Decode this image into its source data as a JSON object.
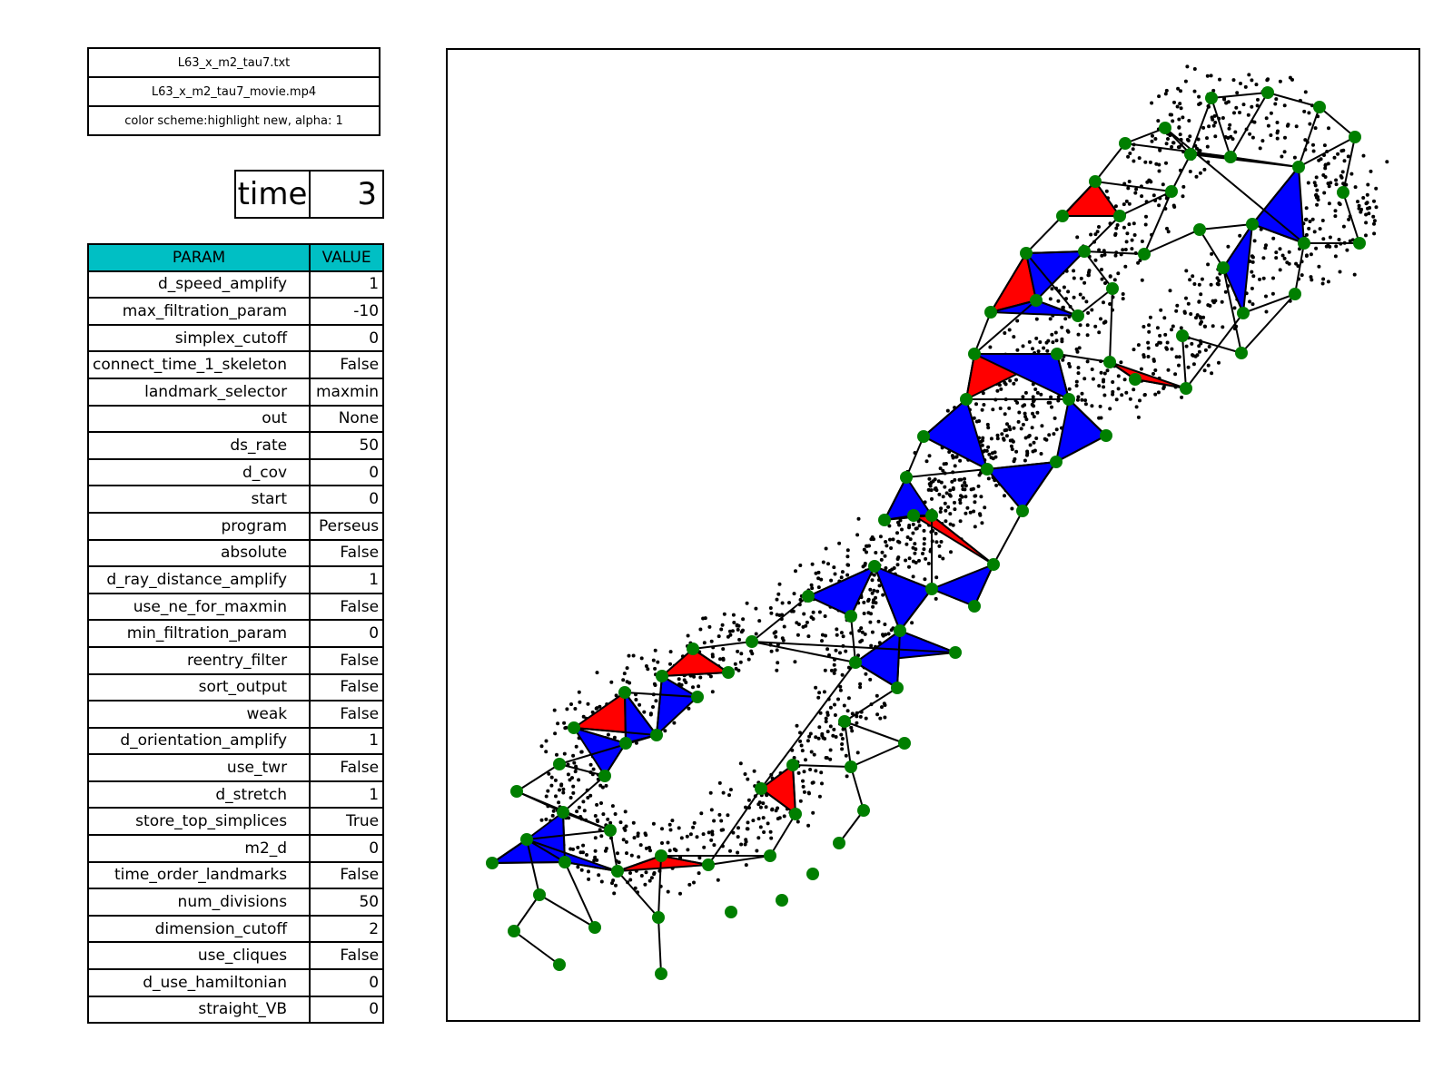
{
  "info": {
    "input_file": "L63_x_m2_tau7.txt",
    "movie_file": "L63_x_m2_tau7_movie.mp4",
    "color_scheme": "color scheme:highlight new, alpha: 1"
  },
  "time": {
    "label": "time",
    "value": "3"
  },
  "params": {
    "header_param": "PARAM",
    "header_value": "VALUE",
    "rows": [
      {
        "name": "d_speed_amplify",
        "value": "1"
      },
      {
        "name": "max_filtration_param",
        "value": "-10"
      },
      {
        "name": "simplex_cutoff",
        "value": "0"
      },
      {
        "name": "connect_time_1_skeleton",
        "value": "False"
      },
      {
        "name": "landmark_selector",
        "value": "maxmin"
      },
      {
        "name": "out",
        "value": "None"
      },
      {
        "name": "ds_rate",
        "value": "50"
      },
      {
        "name": "d_cov",
        "value": "0"
      },
      {
        "name": "start",
        "value": "0"
      },
      {
        "name": "program",
        "value": "Perseus"
      },
      {
        "name": "absolute",
        "value": "False"
      },
      {
        "name": "d_ray_distance_amplify",
        "value": "1"
      },
      {
        "name": "use_ne_for_maxmin",
        "value": "False"
      },
      {
        "name": "min_filtration_param",
        "value": "0"
      },
      {
        "name": "reentry_filter",
        "value": "False"
      },
      {
        "name": "sort_output",
        "value": "False"
      },
      {
        "name": "weak",
        "value": "False"
      },
      {
        "name": "d_orientation_amplify",
        "value": "1"
      },
      {
        "name": "use_twr",
        "value": "False"
      },
      {
        "name": "d_stretch",
        "value": "1"
      },
      {
        "name": "store_top_simplices",
        "value": "True"
      },
      {
        "name": "m2_d",
        "value": "0"
      },
      {
        "name": "time_order_landmarks",
        "value": "False"
      },
      {
        "name": "num_divisions",
        "value": "50"
      },
      {
        "name": "dimension_cutoff",
        "value": "2"
      },
      {
        "name": "use_cliques",
        "value": "False"
      },
      {
        "name": "d_use_hamiltonian",
        "value": "0"
      },
      {
        "name": "straight_VB",
        "value": "0"
      }
    ]
  },
  "plot": {
    "colors": {
      "point": "#000000",
      "landmark": "#007f00",
      "edge": "#000000",
      "new_triangle": "#ff0000",
      "old_triangle": "#0000ff"
    }
  }
}
